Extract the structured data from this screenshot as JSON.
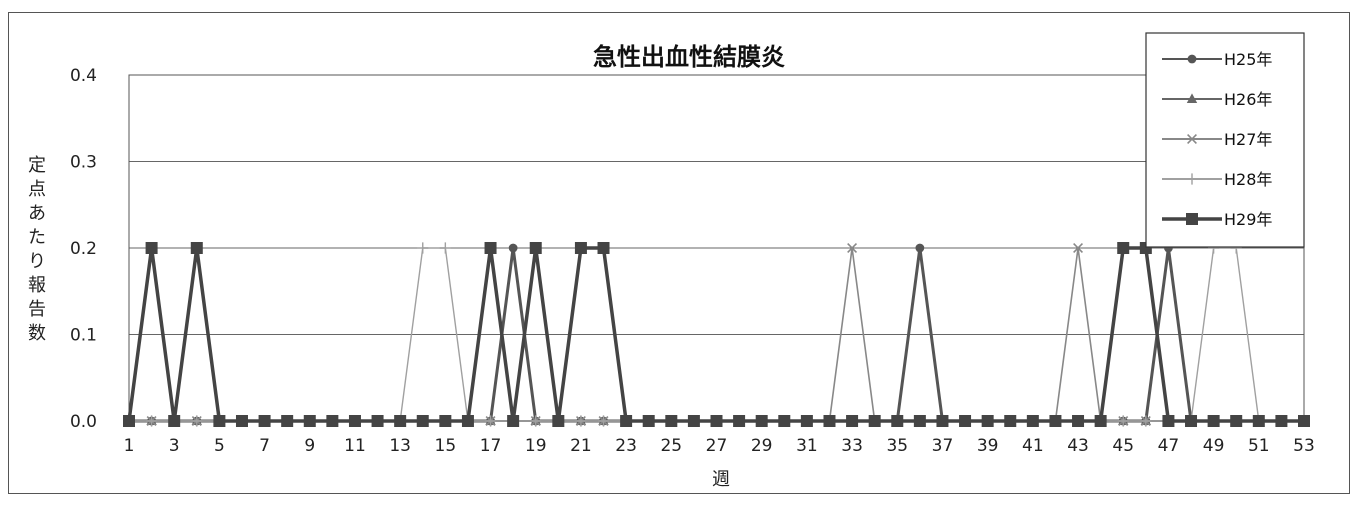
{
  "header_fragment": "",
  "chart_data": {
    "type": "line",
    "title": "急性出血性結膜炎",
    "xlabel": "週",
    "ylabel": "定点あたり報告数",
    "ylim": [
      0,
      0.4
    ],
    "yticks": [
      "0.0",
      "0.1",
      "0.2",
      "0.3",
      "0.4"
    ],
    "xlim": [
      1,
      53
    ],
    "xticks": [
      1,
      3,
      5,
      7,
      9,
      11,
      13,
      15,
      17,
      19,
      21,
      23,
      25,
      27,
      29,
      31,
      33,
      35,
      37,
      39,
      41,
      43,
      45,
      47,
      49,
      51,
      53
    ],
    "grid": true,
    "legend_position": "top-right",
    "series": [
      {
        "name": "H25年",
        "marker": "circle",
        "color": "#555555",
        "values": [
          0,
          0,
          0,
          0,
          0,
          0,
          0,
          0,
          0,
          0,
          0,
          0,
          0,
          0,
          0,
          0,
          0,
          0.2,
          0,
          0,
          0,
          0,
          0,
          0,
          0,
          0,
          0,
          0,
          0,
          0,
          0,
          0,
          0,
          0,
          0,
          0.2,
          0,
          0,
          0,
          0,
          0,
          0,
          0,
          0,
          0,
          0,
          0.2,
          0,
          0,
          0,
          0,
          0,
          0
        ]
      },
      {
        "name": "H26年",
        "marker": "triangle",
        "color": "#666666",
        "values": [
          0,
          0,
          0,
          0,
          0,
          0,
          0,
          0,
          0,
          0,
          0,
          0,
          0,
          0,
          0,
          0,
          0,
          0,
          0,
          0,
          0,
          0,
          0,
          0,
          0,
          0,
          0,
          0,
          0,
          0,
          0,
          0,
          0,
          0,
          0,
          0,
          0,
          0,
          0,
          0,
          0,
          0,
          0,
          0,
          0,
          0,
          0,
          0,
          0,
          0,
          0,
          0,
          0
        ]
      },
      {
        "name": "H27年",
        "marker": "x",
        "color": "#888888",
        "values": [
          0,
          0,
          0,
          0,
          0,
          0,
          0,
          0,
          0,
          0,
          0,
          0,
          0,
          0,
          0,
          0,
          0,
          0,
          0,
          0,
          0,
          0,
          0,
          0,
          0,
          0,
          0,
          0,
          0,
          0,
          0,
          0,
          0.2,
          0,
          0,
          0,
          0,
          0,
          0,
          0,
          0,
          0,
          0.2,
          0,
          0,
          0,
          0,
          0,
          0,
          0,
          0,
          0,
          0
        ]
      },
      {
        "name": "H28年",
        "marker": "plus",
        "color": "#a0a0a0",
        "values": [
          0,
          0,
          0,
          0,
          0,
          0,
          0,
          0,
          0,
          0,
          0,
          0,
          0,
          0.2,
          0.2,
          0,
          0,
          0,
          0,
          0,
          0,
          0,
          0,
          0,
          0,
          0,
          0,
          0,
          0,
          0,
          0,
          0,
          0,
          0,
          0,
          0,
          0,
          0,
          0,
          0,
          0,
          0,
          0,
          0,
          0,
          0,
          0,
          0,
          0.2,
          0.2,
          0,
          0,
          0
        ]
      },
      {
        "name": "H29年",
        "marker": "square",
        "color": "#444444",
        "values": [
          0,
          0.2,
          0,
          0.2,
          0,
          0,
          0,
          0,
          0,
          0,
          0,
          0,
          0,
          0,
          0,
          0,
          0.2,
          0,
          0.2,
          0,
          0.2,
          0.2,
          0,
          0,
          0,
          0,
          0,
          0,
          0,
          0,
          0,
          0,
          0,
          0,
          0,
          0,
          0,
          0,
          0,
          0,
          0,
          0,
          0,
          0,
          0.2,
          0.2,
          0,
          0,
          0,
          0,
          0,
          0,
          0
        ]
      }
    ]
  }
}
